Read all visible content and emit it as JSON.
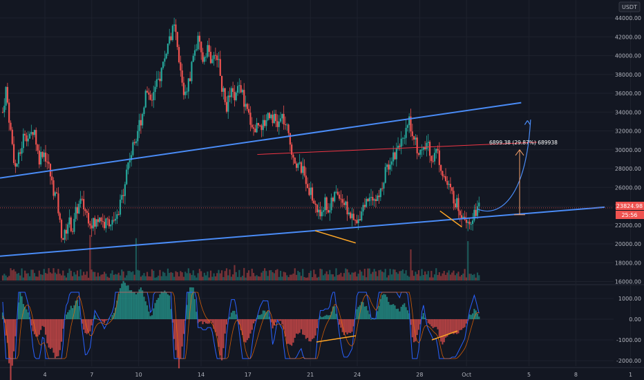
{
  "currency": "USDT",
  "price_badge": {
    "price": "23824.98",
    "countdown": "25:56"
  },
  "measure_label": "6899.38 (29.87%) 689938",
  "colors": {
    "background": "#131722",
    "up": "#26a69a",
    "down": "#ef5350",
    "trendline": "#2962ff",
    "trendline_light": "#4a8cf7",
    "resistance": "#f23645",
    "divergence": "#ffa726",
    "grid": "#1e222d"
  },
  "chart_data": [
    {
      "type": "candlestick",
      "title": "",
      "ylim": [
        15000,
        46000
      ],
      "yticks": [
        "44000.00",
        "42000.00",
        "40000.00",
        "38000.00",
        "36000.00",
        "34000.00",
        "32000.00",
        "30000.00",
        "28000.00",
        "26000.00",
        "24000.00",
        "22000.00",
        "20000.00",
        "18000.00",
        "16000.00"
      ],
      "x_day_range": [
        1.3,
        30
      ],
      "projection_day_range": [
        30,
        11
      ],
      "series": [
        {
          "keypoints": [
            [
              1.3,
              34000
            ],
            [
              1.5,
              36500
            ],
            [
              1.8,
              32000
            ],
            [
              2.1,
              28000
            ],
            [
              2.4,
              29500
            ],
            [
              2.7,
              32000
            ],
            [
              3.0,
              31000
            ],
            [
              3.3,
              32500
            ],
            [
              3.6,
              29000
            ],
            [
              3.9,
              30000
            ],
            [
              4.2,
              28500
            ],
            [
              4.5,
              26000
            ],
            [
              4.8,
              24500
            ],
            [
              5.0,
              21500
            ],
            [
              5.2,
              20500
            ],
            [
              5.5,
              22500
            ],
            [
              5.8,
              21500
            ],
            [
              6.0,
              23500
            ],
            [
              6.3,
              24500
            ],
            [
              6.6,
              23500
            ],
            [
              6.9,
              22500
            ],
            [
              7.2,
              22000
            ],
            [
              7.5,
              23000
            ],
            [
              7.8,
              22000
            ],
            [
              8.1,
              22500
            ],
            [
              8.4,
              22000
            ],
            [
              8.7,
              23000
            ],
            [
              9.0,
              25500
            ],
            [
              9.3,
              28500
            ],
            [
              9.6,
              30000
            ],
            [
              9.9,
              32000
            ],
            [
              10.2,
              33500
            ],
            [
              10.5,
              36500
            ],
            [
              10.8,
              35500
            ],
            [
              11.1,
              36500
            ],
            [
              11.4,
              38000
            ],
            [
              11.7,
              40000
            ],
            [
              12.0,
              42000
            ],
            [
              12.3,
              43000
            ],
            [
              12.6,
              39000
            ],
            [
              12.9,
              36000
            ],
            [
              13.2,
              37000
            ],
            [
              13.5,
              40000
            ],
            [
              13.8,
              41500
            ],
            [
              14.1,
              39500
            ],
            [
              14.4,
              41000
            ],
            [
              14.7,
              39000
            ],
            [
              15.0,
              40500
            ],
            [
              15.3,
              37000
            ],
            [
              15.6,
              34500
            ],
            [
              15.9,
              36000
            ],
            [
              16.2,
              35500
            ],
            [
              16.5,
              37000
            ],
            [
              16.8,
              34500
            ],
            [
              17.1,
              33500
            ],
            [
              17.4,
              32000
            ],
            [
              17.7,
              33000
            ],
            [
              18.0,
              32500
            ],
            [
              18.3,
              34000
            ],
            [
              18.6,
              33500
            ],
            [
              18.9,
              32500
            ],
            [
              19.2,
              33500
            ],
            [
              19.5,
              32000
            ],
            [
              19.8,
              30000
            ],
            [
              20.1,
              28500
            ],
            [
              20.4,
              28000
            ],
            [
              20.7,
              27000
            ],
            [
              21.0,
              25500
            ],
            [
              21.3,
              24000
            ],
            [
              21.6,
              23000
            ],
            [
              21.9,
              24500
            ],
            [
              22.2,
              23500
            ],
            [
              22.5,
              25000
            ],
            [
              22.8,
              25500
            ],
            [
              23.1,
              24500
            ],
            [
              23.4,
              23500
            ],
            [
              23.7,
              22500
            ],
            [
              24.0,
              22000
            ],
            [
              24.3,
              24000
            ],
            [
              24.6,
              24500
            ],
            [
              24.9,
              25500
            ],
            [
              25.2,
              24500
            ],
            [
              25.5,
              25500
            ],
            [
              25.8,
              27500
            ],
            [
              26.1,
              29000
            ],
            [
              26.4,
              29500
            ],
            [
              26.7,
              31000
            ],
            [
              27.0,
              30500
            ],
            [
              27.3,
              33500
            ],
            [
              27.6,
              31500
            ],
            [
              27.9,
              30000
            ],
            [
              28.2,
              29500
            ],
            [
              28.5,
              31000
            ],
            [
              28.8,
              29000
            ],
            [
              29.1,
              30000
            ],
            [
              29.4,
              28000
            ],
            [
              29.7,
              26500
            ],
            [
              30.0,
              25500
            ],
            [
              30.3,
              24500
            ],
            [
              30.6,
              23500
            ],
            [
              30.9,
              23000
            ],
            [
              31.2,
              22500
            ],
            [
              31.5,
              23500
            ],
            [
              31.8,
              23800
            ]
          ]
        }
      ],
      "macd_yticks": [
        "1000.00",
        "0.00",
        "-1000.00",
        "-2000.00"
      ],
      "macd_ylim": [
        -2300,
        1500
      ],
      "x_labels": [
        "4",
        "7",
        "10",
        "14",
        "17",
        "21",
        "24",
        "28",
        "Oct",
        "5",
        "8",
        "1"
      ]
    }
  ]
}
